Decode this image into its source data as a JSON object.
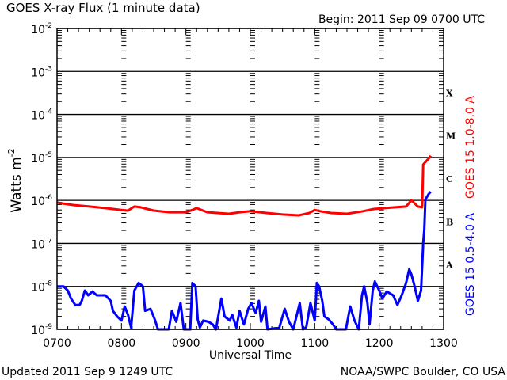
{
  "chart_data": {
    "type": "line",
    "title": "GOES X-ray Flux (1 minute data)",
    "subtitle": "Begin: 2011 Sep 09 0700 UTC",
    "xlabel": "Universal Time",
    "ylabel": "Watts m",
    "ylabel_exponent": "-2",
    "x_tick_labels": [
      "0700",
      "0800",
      "0900",
      "1000",
      "1100",
      "1200",
      "1300"
    ],
    "xlim": [
      "0700",
      "1300"
    ],
    "y_scale": "log",
    "ylim": [
      1e-09,
      0.01
    ],
    "y_tick_labels": [
      {
        "base": "10",
        "exp": "-2"
      },
      {
        "base": "10",
        "exp": "-3"
      },
      {
        "base": "10",
        "exp": "-4"
      },
      {
        "base": "10",
        "exp": "-5"
      },
      {
        "base": "10",
        "exp": "-6"
      },
      {
        "base": "10",
        "exp": "-7"
      },
      {
        "base": "10",
        "exp": "-8"
      },
      {
        "base": "10",
        "exp": "-9"
      }
    ],
    "flare_classes": [
      "X",
      "M",
      "C",
      "B",
      "A"
    ],
    "grid": "horizontal lines at each decade",
    "footer_left": "Updated 2011 Sep  9 1249 UTC",
    "footer_right": "NOAA/SWPC Boulder, CO USA",
    "series": [
      {
        "name": "GOES 15 1.0-8.0 A",
        "color": "#ff0000",
        "points": [
          [
            "0700",
            8.9e-07
          ],
          [
            "0705",
            8.5e-07
          ],
          [
            "0715",
            7.8e-07
          ],
          [
            "0730",
            7.2e-07
          ],
          [
            "0745",
            6.6e-07
          ],
          [
            "0800",
            6e-07
          ],
          [
            "0806",
            5.8e-07
          ],
          [
            "0812",
            7.2e-07
          ],
          [
            "0818",
            6.9e-07
          ],
          [
            "0830",
            5.8e-07
          ],
          [
            "0845",
            5.3e-07
          ],
          [
            "0900",
            5.3e-07
          ],
          [
            "0906",
            6e-07
          ],
          [
            "0910",
            6.6e-07
          ],
          [
            "0920",
            5.3e-07
          ],
          [
            "0940",
            4.9e-07
          ],
          [
            "0950",
            5.3e-07
          ],
          [
            "1000",
            5.6e-07
          ],
          [
            "1015",
            5.1e-07
          ],
          [
            "1030",
            4.7e-07
          ],
          [
            "1045",
            4.5e-07
          ],
          [
            "1055",
            5.1e-07
          ],
          [
            "1100",
            6e-07
          ],
          [
            "1105",
            5.6e-07
          ],
          [
            "1115",
            5.1e-07
          ],
          [
            "1130",
            4.9e-07
          ],
          [
            "1145",
            5.6e-07
          ],
          [
            "1155",
            6.3e-07
          ],
          [
            "1205",
            6.6e-07
          ],
          [
            "1215",
            6.9e-07
          ],
          [
            "1225",
            7.2e-07
          ],
          [
            "1230",
            1e-06
          ],
          [
            "1236",
            7.2e-07
          ],
          [
            "1240",
            6.9e-07
          ],
          [
            "1241",
            6.8e-06
          ],
          [
            "1244",
            8.3e-06
          ],
          [
            "1247",
            1e-05
          ],
          [
            "1248",
            1.1e-05
          ]
        ]
      },
      {
        "name": "GOES 15 0.5-4.0 A",
        "color": "#0000ff",
        "points": [
          [
            "0700",
            1e-08
          ],
          [
            "0706",
            1e-08
          ],
          [
            "0710",
            8e-09
          ],
          [
            "0713",
            5.2e-09
          ],
          [
            "0717",
            3.7e-09
          ],
          [
            "0721",
            3.7e-09
          ],
          [
            "0723",
            4.6e-09
          ],
          [
            "0726",
            8e-09
          ],
          [
            "0729",
            6.2e-09
          ],
          [
            "0733",
            7.6e-09
          ],
          [
            "0737",
            6.2e-09
          ],
          [
            "0745",
            6.2e-09
          ],
          [
            "0750",
            4.6e-09
          ],
          [
            "0752",
            2.7e-09
          ],
          [
            "0756",
            2e-09
          ],
          [
            "0800",
            1.6e-09
          ],
          [
            "0803",
            3.4e-09
          ],
          [
            "0806",
            2.2e-09
          ],
          [
            "0809",
            1.1e-09
          ],
          [
            "0812",
            8e-09
          ],
          [
            "0816",
            1.2e-08
          ],
          [
            "0820",
            1e-08
          ],
          [
            "0822",
            2.7e-09
          ],
          [
            "0827",
            3e-09
          ],
          [
            "0831",
            1.7e-09
          ],
          [
            "0834",
            1e-09
          ],
          [
            "0844",
            1e-09
          ],
          [
            "0847",
            2.7e-09
          ],
          [
            "0851",
            1.5e-09
          ],
          [
            "0855",
            4.1e-09
          ],
          [
            "0858",
            1e-09
          ],
          [
            "0904",
            1e-09
          ],
          [
            "0906",
            1.2e-08
          ],
          [
            "0909",
            1e-08
          ],
          [
            "0911",
            1.7e-09
          ],
          [
            "0913",
            1.1e-09
          ],
          [
            "0916",
            1.6e-09
          ],
          [
            "0921",
            1.5e-09
          ],
          [
            "0925",
            1.3e-09
          ],
          [
            "0928",
            1e-09
          ],
          [
            "0933",
            5.2e-09
          ],
          [
            "0936",
            2e-09
          ],
          [
            "0941",
            1.6e-09
          ],
          [
            "0943",
            2.2e-09
          ],
          [
            "0947",
            1.1e-09
          ],
          [
            "0950",
            2.7e-09
          ],
          [
            "0954",
            1.3e-09
          ],
          [
            "0958",
            3e-09
          ],
          [
            "1001",
            4.1e-09
          ],
          [
            "1005",
            2.4e-09
          ],
          [
            "1008",
            4.6e-09
          ],
          [
            "1010",
            1.5e-09
          ],
          [
            "1014",
            3.4e-09
          ],
          [
            "1016",
            1e-09
          ],
          [
            "1027",
            1.1e-09
          ],
          [
            "1032",
            3e-09
          ],
          [
            "1036",
            1.5e-09
          ],
          [
            "1040",
            1e-09
          ],
          [
            "1046",
            4.1e-09
          ],
          [
            "1049",
            1e-09
          ],
          [
            "1052",
            1.1e-09
          ],
          [
            "1056",
            4.1e-09
          ],
          [
            "1100",
            1.6e-09
          ],
          [
            "1102",
            1.2e-08
          ],
          [
            "1104",
            1e-08
          ],
          [
            "1107",
            4.6e-09
          ],
          [
            "1109",
            2e-09
          ],
          [
            "1113",
            1.7e-09
          ],
          [
            "1117",
            1.3e-09
          ],
          [
            "1120",
            1e-09
          ],
          [
            "1129",
            1e-09
          ],
          [
            "1133",
            3.4e-09
          ],
          [
            "1137",
            1.6e-09
          ],
          [
            "1141",
            1e-09
          ],
          [
            "1144",
            6.2e-09
          ],
          [
            "1146",
            1e-08
          ],
          [
            "1149",
            4.1e-09
          ],
          [
            "1151",
            1.3e-09
          ],
          [
            "1154",
            8e-09
          ],
          [
            "1156",
            1.3e-08
          ],
          [
            "1200",
            8e-09
          ],
          [
            "1203",
            5.2e-09
          ],
          [
            "1207",
            7.6e-09
          ],
          [
            "1213",
            6.2e-09
          ],
          [
            "1217",
            3.7e-09
          ],
          [
            "1221",
            6.2e-09
          ],
          [
            "1225",
            1.2e-08
          ],
          [
            "1228",
            2.5e-08
          ],
          [
            "1230",
            1.9e-08
          ],
          [
            "1233",
            1e-08
          ],
          [
            "1236",
            4.6e-09
          ],
          [
            "1239",
            8e-09
          ],
          [
            "1240",
            2.8e-08
          ],
          [
            "1241",
            1e-07
          ],
          [
            "1242",
            2.1e-07
          ],
          [
            "1243",
            1.05e-06
          ],
          [
            "1246",
            1.4e-06
          ],
          [
            "1248",
            1.6e-06
          ]
        ]
      }
    ]
  }
}
